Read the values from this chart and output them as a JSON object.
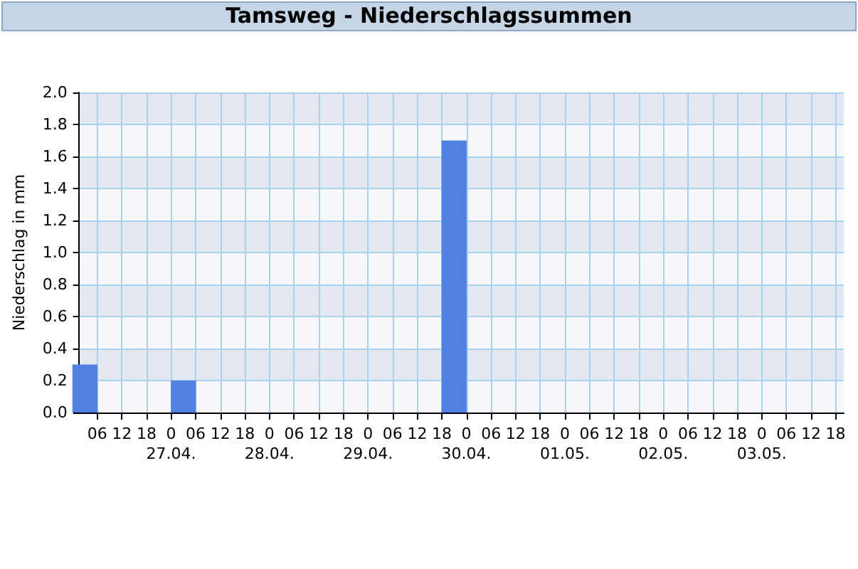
{
  "chart_data": {
    "type": "bar",
    "title": "Tamsweg - Niederschlagssummen",
    "ylabel": "Niederschlag in mm",
    "x": [
      "--04-26T03:00",
      "--04-27T03:00",
      "--04-29T21:00"
    ],
    "values": [
      0.3,
      0.2,
      1.7
    ],
    "color": "#5182e3",
    "xlim": [
      "--04-26T01:30",
      "--05-03T20:00"
    ],
    "xticks": [
      {
        "value": "--04-26T06:00",
        "label": "06"
      },
      {
        "value": "--04-26T12:00",
        "label": "12"
      },
      {
        "value": "--04-26T18:00",
        "label": "18"
      },
      {
        "value": "--04-27T00:00",
        "label": "0\n27.04."
      },
      {
        "value": "--04-27T06:00",
        "label": "06"
      },
      {
        "value": "--04-27T12:00",
        "label": "12"
      },
      {
        "value": "--04-27T18:00",
        "label": "18"
      },
      {
        "value": "--04-28T00:00",
        "label": "0\n28.04."
      },
      {
        "value": "--04-28T06:00",
        "label": "06"
      },
      {
        "value": "--04-28T12:00",
        "label": "12"
      },
      {
        "value": "--04-28T18:00",
        "label": "18"
      },
      {
        "value": "--04-29T00:00",
        "label": "0\n29.04."
      },
      {
        "value": "--04-29T06:00",
        "label": "06"
      },
      {
        "value": "--04-29T12:00",
        "label": "12"
      },
      {
        "value": "--04-29T18:00",
        "label": "18"
      },
      {
        "value": "--04-30T00:00",
        "label": "0\n30.04."
      },
      {
        "value": "--04-30T06:00",
        "label": "06"
      },
      {
        "value": "--04-30T12:00",
        "label": "12"
      },
      {
        "value": "--04-30T18:00",
        "label": "18"
      },
      {
        "value": "--05-01T00:00",
        "label": "0\n01.05."
      },
      {
        "value": "--05-01T06:00",
        "label": "06"
      },
      {
        "value": "--05-01T12:00",
        "label": "12"
      },
      {
        "value": "--05-01T18:00",
        "label": "18"
      },
      {
        "value": "--05-02T00:00",
        "label": "0\n02.05."
      },
      {
        "value": "--05-02T06:00",
        "label": "06"
      },
      {
        "value": "--05-02T12:00",
        "label": "12"
      },
      {
        "value": "--05-02T18:00",
        "label": "18"
      },
      {
        "value": "--05-03T00:00",
        "label": "0\n03.05."
      },
      {
        "value": "--05-03T06:00",
        "label": "06"
      },
      {
        "value": "--05-03T12:00",
        "label": "12"
      },
      {
        "value": "--05-03T18:00",
        "label": "18"
      }
    ],
    "ylim": [
      0,
      2
    ],
    "yticks": [
      {
        "value": 0,
        "label": "0.0"
      },
      0.2,
      0.4,
      0.6,
      0.8,
      {
        "value": 1,
        "label": "1.0"
      },
      1.2,
      1.4,
      1.6,
      1.8,
      {
        "value": 2,
        "label": "2.0"
      }
    ],
    "grid": true
  }
}
